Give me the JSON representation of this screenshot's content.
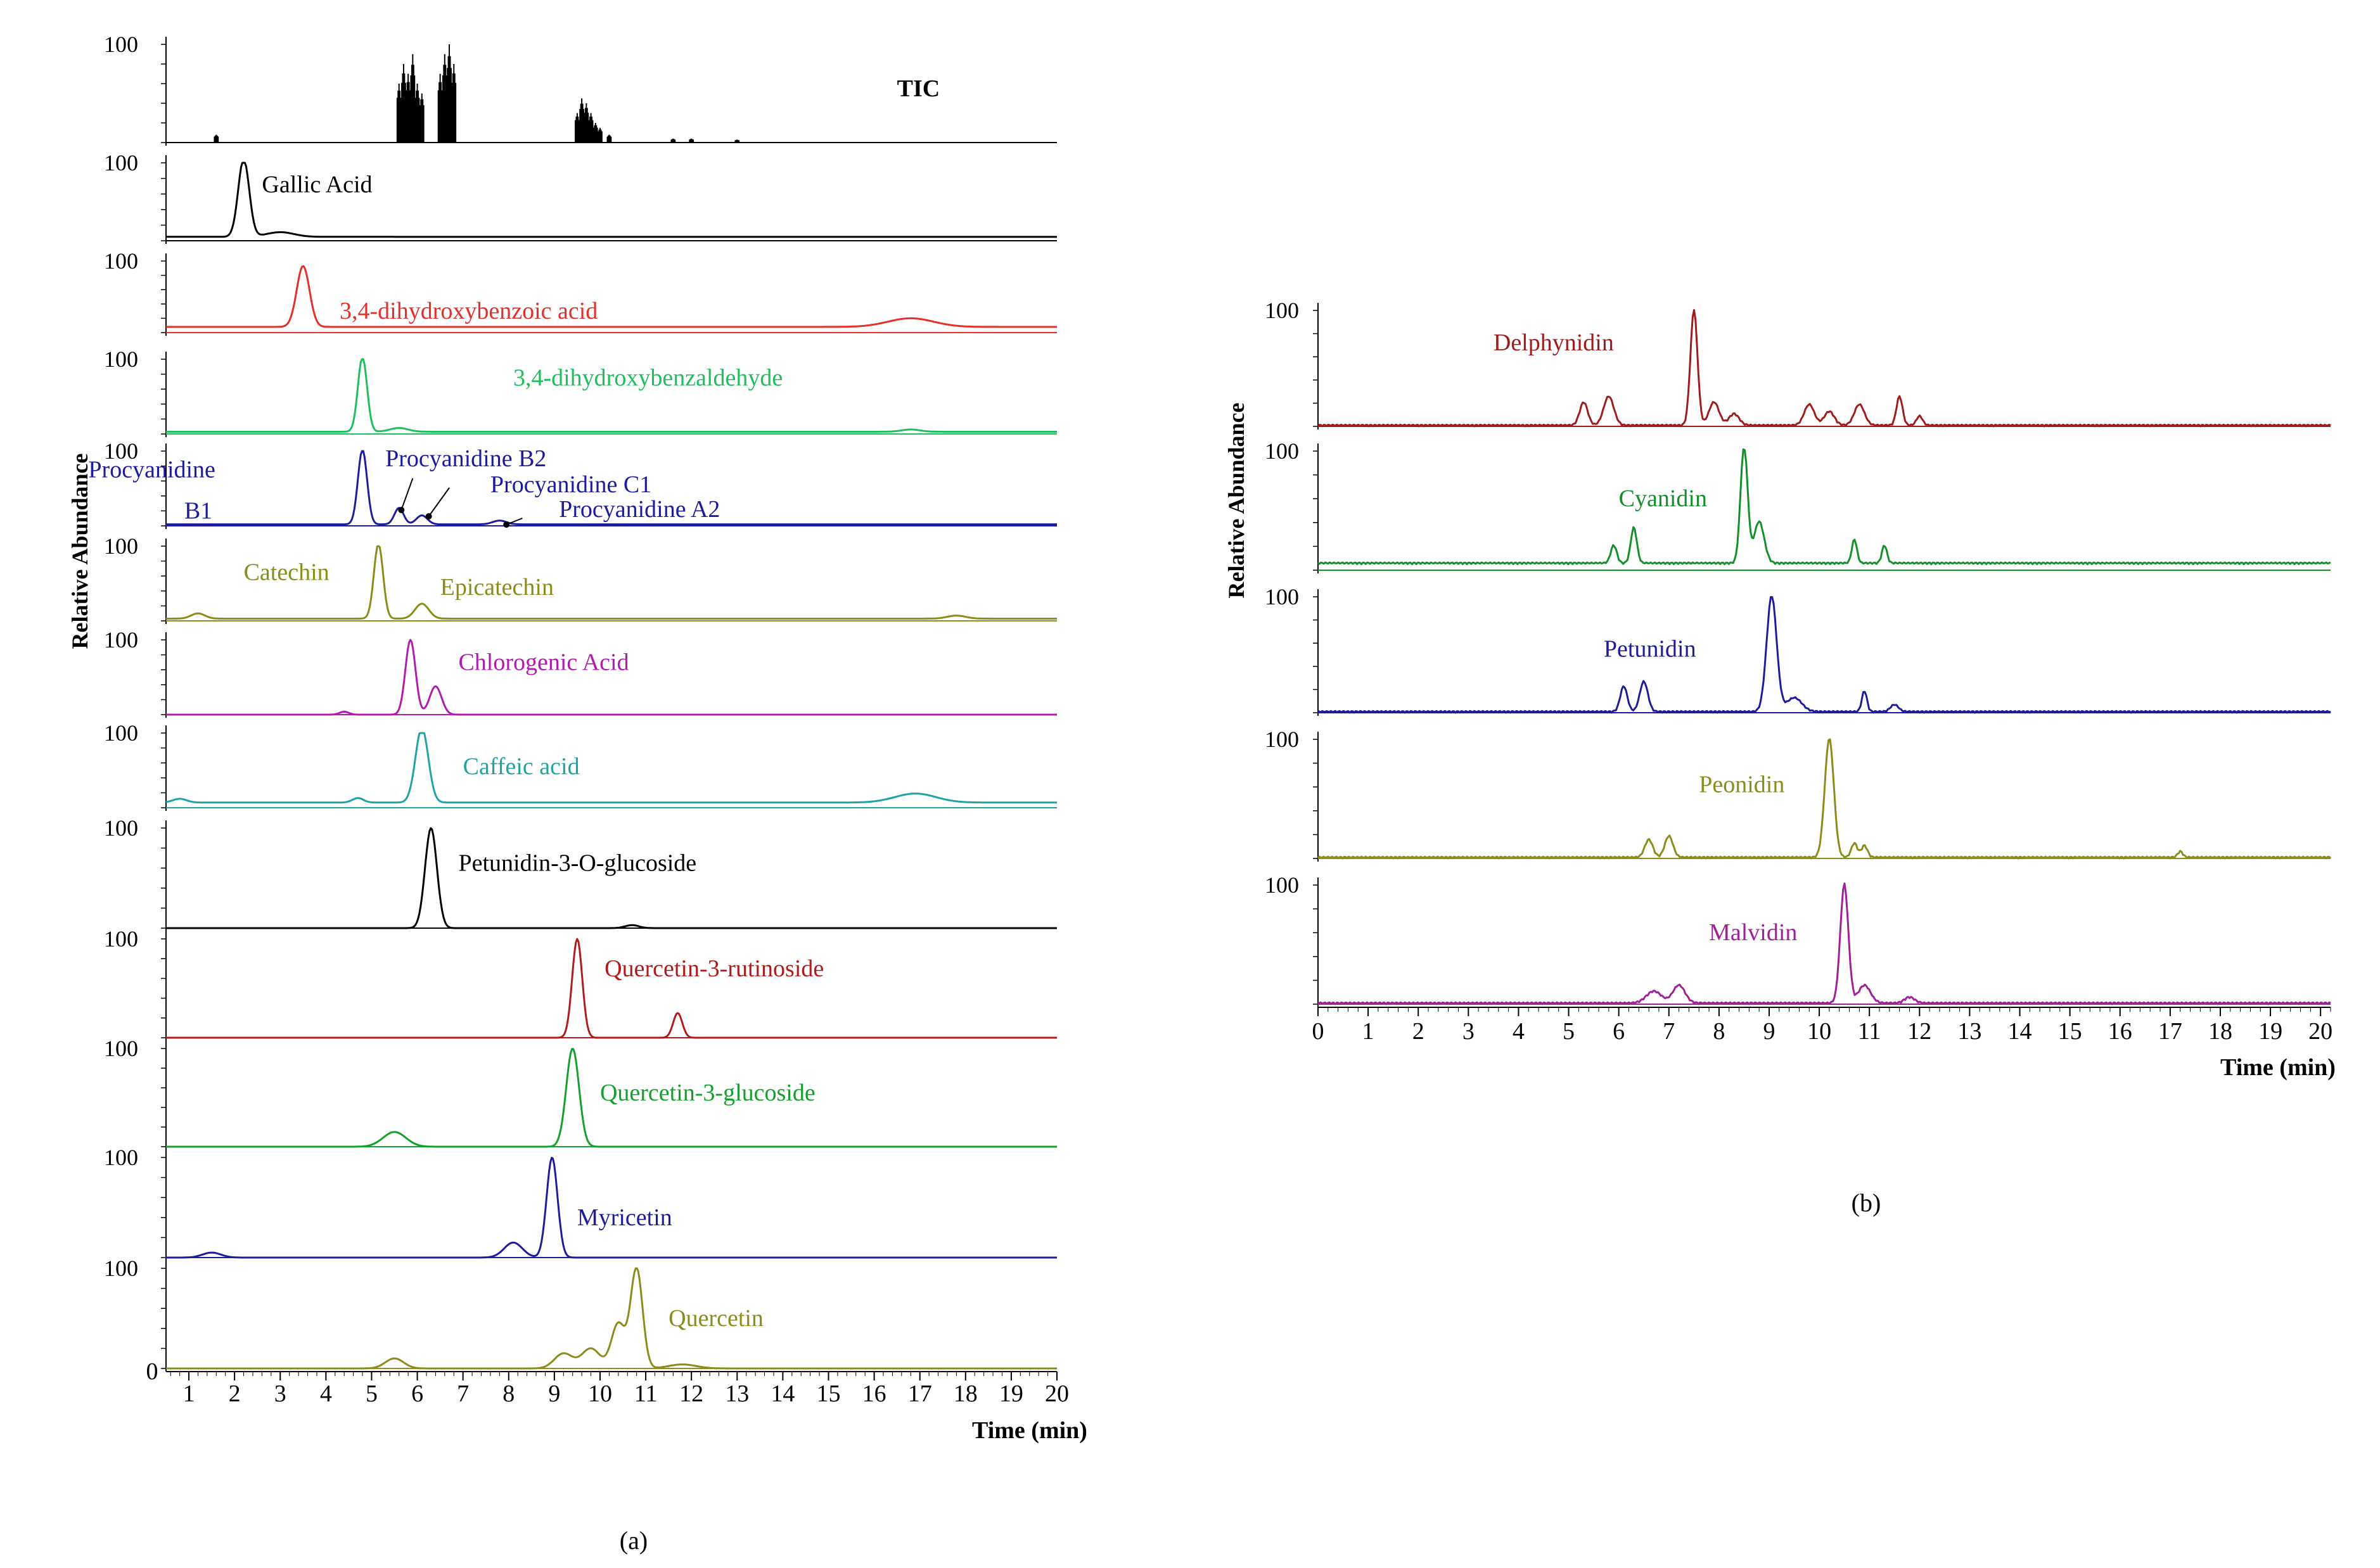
{
  "chart_data": [
    {
      "type": "line",
      "panel_label": "(a)",
      "xlabel": "Time (min)",
      "ylabel": "Relative Abundance",
      "xlim": [
        0.5,
        20
      ],
      "x_ticks": [
        "1",
        "2",
        "3",
        "4",
        "5",
        "6",
        "7",
        "8",
        "9",
        "10",
        "11",
        "12",
        "13",
        "14",
        "15",
        "16",
        "17",
        "18",
        "19",
        "20"
      ],
      "x_zero_label": "0",
      "y_top_label": "100",
      "traces": [
        {
          "name": "TIC",
          "color": "#000000",
          "kind": "bars",
          "peaks": [
            [
              1.6,
              0.08
            ],
            [
              5.6,
              0.6
            ],
            [
              5.7,
              0.8
            ],
            [
              5.8,
              0.7
            ],
            [
              5.9,
              0.9
            ],
            [
              6.0,
              0.6
            ],
            [
              6.1,
              0.5
            ],
            [
              6.5,
              0.7
            ],
            [
              6.6,
              0.9
            ],
            [
              6.7,
              1.0
            ],
            [
              6.8,
              0.8
            ],
            [
              9.5,
              0.3
            ],
            [
              9.6,
              0.45
            ],
            [
              9.7,
              0.4
            ],
            [
              9.8,
              0.3
            ],
            [
              9.9,
              0.2
            ],
            [
              10.0,
              0.15
            ],
            [
              10.2,
              0.08
            ],
            [
              11.6,
              0.04
            ],
            [
              12.0,
              0.04
            ],
            [
              13.0,
              0.03
            ]
          ],
          "labels": [
            {
              "text": "TIC",
              "x": 16.5,
              "y": 0.55,
              "bold": true
            }
          ]
        },
        {
          "name": "Gallic Acid",
          "color": "#000000",
          "baseline": 0.05,
          "peaks": [
            [
              2.2,
              1.0,
              0.12
            ],
            [
              3.0,
              0.06,
              0.3
            ]
          ],
          "labels": [
            {
              "text": "Gallic Acid",
              "x": 2.6,
              "y": 0.72
            }
          ]
        },
        {
          "name": "3,4-dihydroxybenzoic acid",
          "color": "#e4302a",
          "baseline": 0.08,
          "peaks": [
            [
              3.5,
              0.85,
              0.14
            ],
            [
              16.8,
              0.12,
              0.5
            ]
          ],
          "labels": [
            {
              "text": "3,4-dihydroxybenzoic acid",
              "x": 4.3,
              "y": 0.3
            }
          ]
        },
        {
          "name": "3,4-dihydroxybenzaldehyde",
          "color": "#1fbf5e",
          "baseline": 0.03,
          "peaks": [
            [
              4.8,
              1.0,
              0.1
            ],
            [
              5.6,
              0.05,
              0.2
            ],
            [
              16.8,
              0.03,
              0.2
            ]
          ],
          "labels": [
            {
              "text": "3,4-dihydroxybenzaldehyde",
              "x": 8.1,
              "y": 0.75
            }
          ]
        },
        {
          "name": "Procyanidins",
          "color": "#1c1c9c",
          "baseline": 0.02,
          "peaks": [
            [
              4.8,
              1.0,
              0.1
            ],
            [
              5.6,
              0.22,
              0.1
            ],
            [
              6.1,
              0.12,
              0.12
            ],
            [
              7.8,
              0.05,
              0.15
            ]
          ],
          "labels": [
            {
              "text": "Procyanidine",
              "x": -1.2,
              "y": 0.75
            },
            {
              "text": "B1",
              "x": 0.9,
              "y": 0.2
            },
            {
              "text": "Procyanidine B2",
              "x": 5.3,
              "y": 0.9
            },
            {
              "text": "Procyanidine C1",
              "x": 7.6,
              "y": 0.55
            },
            {
              "text": "Procyanidine A2",
              "x": 9.1,
              "y": 0.22
            }
          ]
        },
        {
          "name": "Catechin / Epicatechin",
          "color": "#8c8c1a",
          "baseline": 0.03,
          "peaks": [
            [
              1.2,
              0.07,
              0.15
            ],
            [
              5.15,
              1.0,
              0.1
            ],
            [
              6.1,
              0.2,
              0.15
            ],
            [
              17.8,
              0.04,
              0.2
            ]
          ],
          "labels": [
            {
              "text": "Catechin",
              "x": 2.2,
              "y": 0.65
            },
            {
              "text": "Epicatechin",
              "x": 6.5,
              "y": 0.45
            }
          ]
        },
        {
          "name": "Chlorogenic Acid",
          "color": "#b01cad",
          "baseline": 0.0,
          "peaks": [
            [
              4.4,
              0.04,
              0.1
            ],
            [
              5.85,
              1.0,
              0.11
            ],
            [
              6.4,
              0.38,
              0.13
            ]
          ],
          "labels": [
            {
              "text": "Chlorogenic Acid",
              "x": 6.9,
              "y": 0.7
            }
          ]
        },
        {
          "name": "Caffeic acid",
          "color": "#1fa3a3",
          "baseline": 0.07,
          "peaks": [
            [
              0.8,
              0.05,
              0.15
            ],
            [
              4.7,
              0.06,
              0.12
            ],
            [
              6.1,
              1.0,
              0.14
            ],
            [
              16.9,
              0.12,
              0.45
            ]
          ],
          "labels": [
            {
              "text": "Caffeic acid",
              "x": 7.0,
              "y": 0.55
            }
          ]
        },
        {
          "name": "Petunidin-3-O-glucoside",
          "color": "#000000",
          "baseline": 0.0,
          "peaks": [
            [
              6.3,
              1.0,
              0.13
            ],
            [
              10.7,
              0.03,
              0.15
            ]
          ],
          "labels": [
            {
              "text": "Petunidin-3-O-glucoside",
              "x": 6.9,
              "y": 0.65
            }
          ]
        },
        {
          "name": "Quercetin-3-rutinoside",
          "color": "#b01c1c",
          "baseline": 0.0,
          "peaks": [
            [
              9.5,
              1.0,
              0.11
            ],
            [
              11.7,
              0.25,
              0.1
            ]
          ],
          "labels": [
            {
              "text": "Quercetin-3-rutinoside",
              "x": 10.1,
              "y": 0.7
            }
          ]
        },
        {
          "name": "Quercetin-3-glucoside",
          "color": "#14a02a",
          "baseline": 0.0,
          "peaks": [
            [
              5.5,
              0.15,
              0.25
            ],
            [
              9.4,
              1.0,
              0.14
            ]
          ],
          "labels": [
            {
              "text": "Quercetin-3-glucoside",
              "x": 10.0,
              "y": 0.55
            }
          ]
        },
        {
          "name": "Myricetin",
          "color": "#1c1c9c",
          "baseline": 0.0,
          "peaks": [
            [
              1.5,
              0.05,
              0.2
            ],
            [
              8.1,
              0.15,
              0.2
            ],
            [
              8.95,
              1.0,
              0.12
            ]
          ],
          "labels": [
            {
              "text": "Myricetin",
              "x": 9.5,
              "y": 0.4
            }
          ]
        },
        {
          "name": "Quercetin",
          "color": "#8c8c1a",
          "baseline": 0.0,
          "peaks": [
            [
              5.5,
              0.1,
              0.2
            ],
            [
              9.2,
              0.15,
              0.2
            ],
            [
              9.8,
              0.2,
              0.2
            ],
            [
              10.4,
              0.45,
              0.15
            ],
            [
              10.8,
              1.0,
              0.13
            ],
            [
              11.8,
              0.04,
              0.3
            ]
          ],
          "labels": [
            {
              "text": "Quercetin",
              "x": 11.5,
              "y": 0.5
            }
          ]
        }
      ]
    },
    {
      "type": "line",
      "panel_label": "(b)",
      "xlabel": "Time (min)",
      "ylabel": "Relative Abundance",
      "xlim": [
        0,
        20.2
      ],
      "x_ticks": [
        "0",
        "1",
        "2",
        "3",
        "4",
        "5",
        "6",
        "7",
        "8",
        "9",
        "10",
        "11",
        "12",
        "13",
        "14",
        "15",
        "16",
        "17",
        "18",
        "19",
        "20"
      ],
      "y_top_label": "100",
      "traces": [
        {
          "name": "Delphynidin",
          "color": "#a01c1c",
          "baseline": 0.0,
          "peaks": [
            [
              5.3,
              0.2,
              0.08
            ],
            [
              5.8,
              0.25,
              0.1
            ],
            [
              7.5,
              1.0,
              0.07
            ],
            [
              7.9,
              0.2,
              0.1
            ],
            [
              8.3,
              0.1,
              0.1
            ],
            [
              9.8,
              0.18,
              0.1
            ],
            [
              10.2,
              0.12,
              0.1
            ],
            [
              10.8,
              0.18,
              0.1
            ],
            [
              11.6,
              0.25,
              0.06
            ],
            [
              12.0,
              0.08,
              0.06
            ]
          ],
          "labels": [
            {
              "text": "Delphynidin",
              "x": 3.5,
              "y": 0.72
            }
          ]
        },
        {
          "name": "Cyanidin",
          "color": "#14902a",
          "baseline": 0.05,
          "peaks": [
            [
              5.9,
              0.15,
              0.06
            ],
            [
              6.3,
              0.3,
              0.06
            ],
            [
              8.5,
              1.0,
              0.07
            ],
            [
              8.8,
              0.35,
              0.1
            ],
            [
              10.7,
              0.2,
              0.05
            ],
            [
              11.3,
              0.15,
              0.05
            ]
          ],
          "labels": [
            {
              "text": "Cyanidin",
              "x": 6.0,
              "y": 0.6
            }
          ]
        },
        {
          "name": "Petunidin",
          "color": "#1c1c9c",
          "baseline": 0.0,
          "peaks": [
            [
              6.1,
              0.22,
              0.07
            ],
            [
              6.5,
              0.26,
              0.08
            ],
            [
              9.05,
              1.0,
              0.1
            ],
            [
              9.5,
              0.12,
              0.15
            ],
            [
              10.9,
              0.18,
              0.05
            ],
            [
              11.5,
              0.06,
              0.08
            ]
          ],
          "labels": [
            {
              "text": "Petunidin",
              "x": 5.7,
              "y": 0.55
            }
          ]
        },
        {
          "name": "Peonidin",
          "color": "#8c8c1a",
          "baseline": 0.0,
          "peaks": [
            [
              6.6,
              0.15,
              0.08
            ],
            [
              7.0,
              0.18,
              0.08
            ],
            [
              10.2,
              1.0,
              0.09
            ],
            [
              10.7,
              0.12,
              0.06
            ],
            [
              10.9,
              0.1,
              0.06
            ],
            [
              17.2,
              0.05,
              0.05
            ]
          ],
          "labels": [
            {
              "text": "Peonidin",
              "x": 7.6,
              "y": 0.62
            }
          ]
        },
        {
          "name": "Malvidin",
          "color": "#a0209a",
          "baseline": 0.0,
          "peaks": [
            [
              6.7,
              0.1,
              0.15
            ],
            [
              7.2,
              0.15,
              0.12
            ],
            [
              10.5,
              1.0,
              0.08
            ],
            [
              10.9,
              0.15,
              0.12
            ],
            [
              11.8,
              0.05,
              0.1
            ]
          ],
          "labels": [
            {
              "text": "Malvidin",
              "x": 7.8,
              "y": 0.6
            }
          ]
        }
      ]
    }
  ]
}
